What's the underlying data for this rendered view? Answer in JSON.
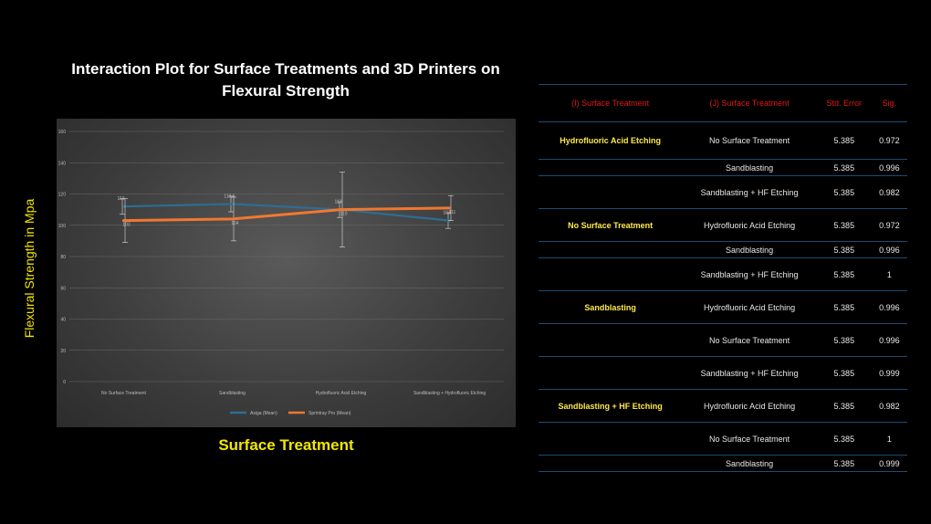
{
  "chart_data": {
    "type": "line",
    "title": "Interaction Plot for Surface Treatments and 3D Printers on Flexural Strength",
    "xlabel": "Surface Treatment",
    "ylabel": "Flexural Strength in Mpa",
    "categories": [
      "No Surface Treatment",
      "Sandblasting",
      "Hydrofluoric Acid Etching",
      "Sandblasting + Hydrofluoric Etching"
    ],
    "ylim": [
      0,
      160
    ],
    "yticks": [
      0,
      20,
      40,
      60,
      80,
      100,
      120,
      140,
      160
    ],
    "grid": true,
    "legend_position": "bottom",
    "series": [
      {
        "name": "Asiga (Mean)",
        "color": "#2c6e94",
        "values": [
          112,
          113.6,
          110,
          103
        ],
        "labels": [
          "112",
          "113.6",
          "110",
          "103"
        ],
        "errors": [
          5,
          5,
          5,
          5
        ]
      },
      {
        "name": "Sprintray Pro (Mean)",
        "color": "#f07830",
        "values": [
          103,
          104,
          110,
          111
        ],
        "labels": [
          "103",
          "104",
          "110",
          "111"
        ],
        "errors": [
          14,
          14,
          24,
          8
        ]
      }
    ]
  },
  "table": {
    "headers": [
      "(I) Surface Treatment",
      "(J) Surface Treatment",
      "Std. Error",
      "Sig."
    ],
    "groups": [
      {
        "name": "Hydrofluoric Acid Etching",
        "rows": [
          {
            "j": "No Surface Treatment",
            "se": "5.385",
            "sig": "0.972"
          },
          {
            "j": "Sandblasting",
            "se": "5.385",
            "sig": "0.996"
          },
          {
            "j": "Sandblasting + HF Etching",
            "se": "5.385",
            "sig": "0.982"
          }
        ]
      },
      {
        "name": "No Surface Treatment",
        "rows": [
          {
            "j": "Hydrofluoric Acid Etching",
            "se": "5.385",
            "sig": "0.972"
          },
          {
            "j": "Sandblasting",
            "se": "5.385",
            "sig": "0.996"
          },
          {
            "j": "Sandblasting + HF Etching",
            "se": "5.385",
            "sig": "1"
          }
        ]
      },
      {
        "name": "Sandblasting",
        "rows": [
          {
            "j": "Hydrofluoric Acid Etching",
            "se": "5.385",
            "sig": "0.996"
          },
          {
            "j": "No Surface Treatment",
            "se": "5.385",
            "sig": "0.996"
          },
          {
            "j": "Sandblasting + HF Etching",
            "se": "5.385",
            "sig": "0.999"
          }
        ]
      },
      {
        "name": "Sandblasting + HF Etching",
        "rows": [
          {
            "j": "Hydrofluoric Acid Etching",
            "se": "5.385",
            "sig": "0.982"
          },
          {
            "j": "No Surface Treatment",
            "se": "5.385",
            "sig": "1"
          },
          {
            "j": "Sandblasting",
            "se": "5.385",
            "sig": "0.999"
          }
        ]
      }
    ]
  }
}
